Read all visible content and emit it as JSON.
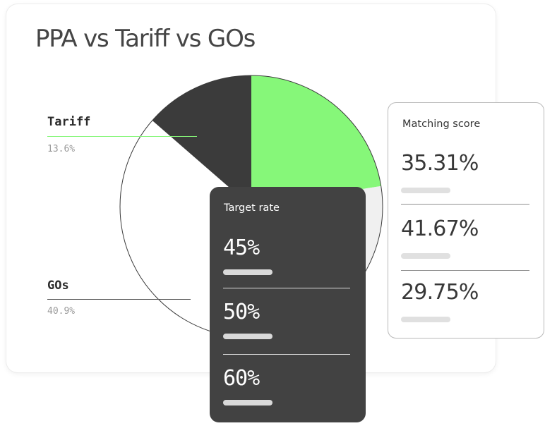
{
  "chart_data": {
    "type": "pie",
    "title": "PPA vs Tariff vs GOs",
    "slices": [
      {
        "label": "",
        "value": 22.5,
        "color": "#86f779"
      },
      {
        "label": "",
        "value": 23.0,
        "color": "#f0f0f0"
      },
      {
        "label": "GOs",
        "value": 40.9,
        "color": "#ffffff"
      },
      {
        "label": "Tariff",
        "value": 13.6,
        "color": "#3b3b3b"
      }
    ],
    "labels": [
      {
        "name": "Tariff",
        "value": "13.6%"
      },
      {
        "name": "GOs",
        "value": "40.9%"
      }
    ]
  },
  "matching_score": {
    "header": "Matching score",
    "values": [
      "35.31%",
      "41.67%",
      "29.75%"
    ]
  },
  "target_rate": {
    "header": "Target rate",
    "values": [
      "45%",
      "50%",
      "60%"
    ]
  },
  "colors": {
    "accent_green": "#86f779",
    "dark": "#424242",
    "callout_line_tariff": "#86f779",
    "callout_line_gos": "#555555"
  }
}
